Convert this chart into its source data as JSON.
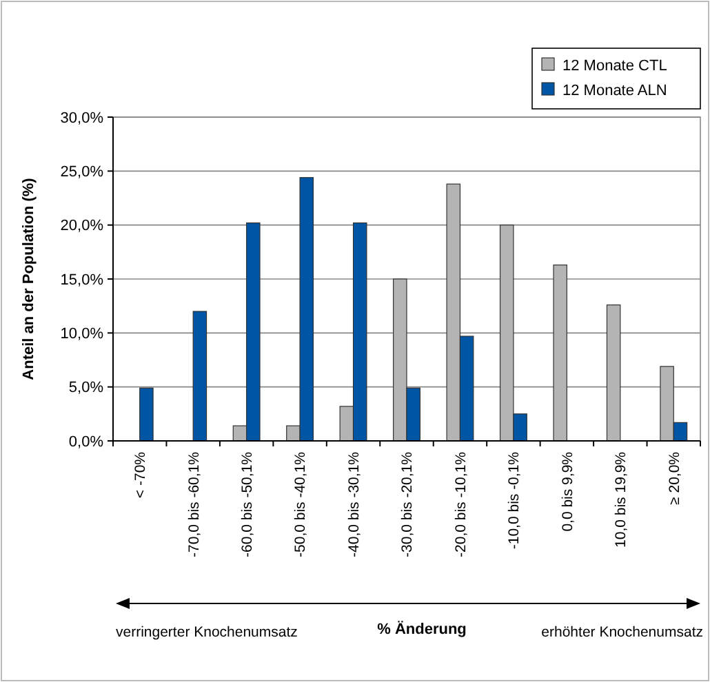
{
  "chart_data": {
    "type": "bar",
    "xlabel": "% Änderung",
    "ylabel": "Anteil an der Population (%)",
    "categories": [
      "< -70%",
      "-70,0 bis -60,1%",
      "-60,0 bis -50,1%",
      "-50,0 bis -40,1%",
      "-40,0 bis -30,1%",
      "-30,0 bis -20,1%",
      "-20,0 bis -10,1%",
      "-10,0 bis -0,1%",
      "0,0 bis 9,9%",
      "10,0 bis 19,9%",
      "≥ 20,0%"
    ],
    "series": [
      {
        "name": "12 Monate CTL",
        "color": "#b4b4b4",
        "values": [
          0,
          0,
          1.4,
          1.4,
          3.2,
          15.0,
          23.8,
          20.0,
          16.3,
          12.6,
          6.9
        ]
      },
      {
        "name": "12 Monate ALN",
        "color": "#0055a5",
        "values": [
          4.9,
          12.0,
          20.2,
          24.4,
          20.2,
          4.9,
          9.7,
          2.5,
          0,
          0,
          1.7
        ]
      }
    ],
    "ylim": [
      0,
      30
    ],
    "yticks": [
      {
        "value": 0,
        "label": "0,0%"
      },
      {
        "value": 5,
        "label": "5,0%"
      },
      {
        "value": 10,
        "label": "10,0%"
      },
      {
        "value": 15,
        "label": "15,0%"
      },
      {
        "value": 20,
        "label": "20,0%"
      },
      {
        "value": 25,
        "label": "25,0%"
      },
      {
        "value": 30,
        "label": "30,0%"
      }
    ],
    "grid": "y",
    "legend": "top right",
    "annotations": [
      "verringerter Knochenumsatz",
      "erhöhter Knochenumsatz"
    ]
  }
}
